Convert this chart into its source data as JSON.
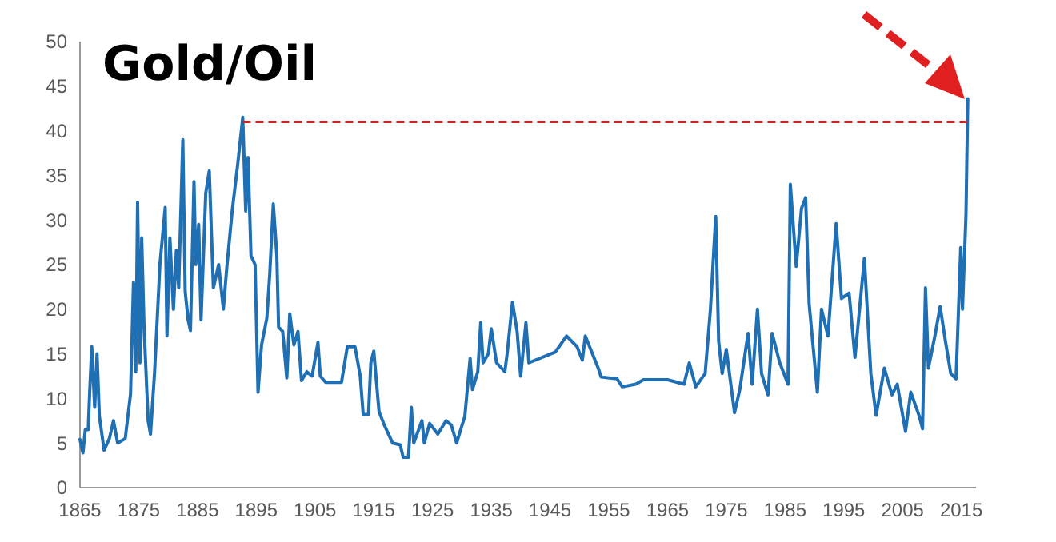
{
  "chart_data": {
    "type": "line",
    "title": "Gold/Oil",
    "xlim": [
      1865,
      2017.5
    ],
    "ylim": [
      0,
      50
    ],
    "xticks": [
      1865,
      1875,
      1885,
      1895,
      1905,
      1915,
      1925,
      1935,
      1945,
      1955,
      1965,
      1975,
      1985,
      1995,
      2005,
      2015
    ],
    "yticks": [
      0,
      5,
      10,
      15,
      20,
      25,
      30,
      35,
      40,
      45,
      50
    ],
    "grid": false,
    "marker": "none",
    "series": [
      {
        "color": "#1f6fb5",
        "x": [
          1865,
          1865.5,
          1865.9,
          1866.4,
          1866.6,
          1867,
          1867.5,
          1867.9,
          1868.3,
          1869.1,
          1870,
          1870.7,
          1871.4,
          1872.7,
          1873.6,
          1874.1,
          1874.5,
          1874.8,
          1875.2,
          1875.5,
          1875.9,
          1876.6,
          1877,
          1877.7,
          1878.6,
          1879.5,
          1879.8,
          1880.3,
          1880.9,
          1881.4,
          1881.8,
          1882.5,
          1882.9,
          1883.4,
          1883.8,
          1884.4,
          1884.7,
          1885.2,
          1885.6,
          1886.4,
          1887,
          1887.7,
          1888.6,
          1889.4,
          1890,
          1890.9,
          1891.8,
          1892.7,
          1893.2,
          1893.6,
          1894.1,
          1894.8,
          1895.3,
          1895.9,
          1896.8,
          1897.3,
          1897.9,
          1898.5,
          1898.8,
          1899.5,
          1900.2,
          1900.7,
          1901.4,
          1902.1,
          1902.7,
          1903.6,
          1904.5,
          1905.5,
          1905.9,
          1906.8,
          1909.5,
          1910.5,
          1911.8,
          1912.7,
          1913.2,
          1914.1,
          1914.5,
          1915,
          1915.9,
          1916.8,
          1918.2,
          1919.5,
          1920,
          1920.9,
          1921.4,
          1921.8,
          1923.2,
          1923.6,
          1924.5,
          1925.9,
          1927.3,
          1928.2,
          1929.1,
          1930.5,
          1931.4,
          1931.8,
          1932.7,
          1933.2,
          1933.6,
          1934.5,
          1935,
          1935.9,
          1937.3,
          1937.7,
          1938.6,
          1939.4,
          1940,
          1940.9,
          1941.4,
          1945.9,
          1947.8,
          1949.6,
          1950.5,
          1951,
          1953.2,
          1953.7,
          1956.4,
          1957.3,
          1959.6,
          1960.9,
          1965,
          1967.8,
          1968.7,
          1969.8,
          1971.4,
          1972.3,
          1973.2,
          1973.7,
          1974.3,
          1975,
          1976.4,
          1977.3,
          1978.7,
          1979.4,
          1980.3,
          1981,
          1982.1,
          1982.8,
          1984.1,
          1985.5,
          1985.9,
          1986.9,
          1987.8,
          1988.5,
          1989.1,
          1990.5,
          1991.2,
          1992.3,
          1993.7,
          1994.6,
          1995.9,
          1996.9,
          1998.5,
          1999.6,
          2000.5,
          2001.9,
          2003.2,
          2004.1,
          2005.5,
          2006.4,
          2007.8,
          2008.4,
          2008.9,
          2009.4,
          2010.5,
          2011.4,
          2012.3,
          2013.2,
          2014.1,
          2014.9,
          2015.2,
          2015.8,
          2016.1
        ],
        "values": [
          5.4,
          3.9,
          6.5,
          6.5,
          10,
          15.8,
          9,
          15,
          8,
          4.2,
          5.5,
          7.5,
          5,
          5.5,
          10.5,
          23,
          13,
          32,
          14,
          28,
          18,
          7.5,
          6,
          13,
          25,
          31.4,
          17,
          28,
          20,
          26.6,
          22.4,
          39,
          22,
          18.8,
          17.6,
          34.3,
          25,
          29.5,
          18.8,
          33,
          35.5,
          22.4,
          25,
          20,
          24.8,
          31,
          36,
          41.5,
          31,
          37,
          26,
          25,
          10.7,
          16,
          19,
          24,
          31.8,
          26,
          18,
          17.5,
          12.3,
          19.5,
          16,
          17.5,
          12,
          13,
          12.5,
          16.3,
          12.5,
          11.8,
          11.8,
          15.8,
          15.8,
          12.5,
          8.2,
          8.2,
          14,
          15.3,
          8.5,
          7,
          5,
          4.8,
          3.4,
          3.4,
          9,
          5,
          7.5,
          5,
          7.2,
          6,
          7.5,
          7,
          5,
          8,
          14.5,
          11,
          13,
          18.5,
          14,
          15,
          17.8,
          14,
          13,
          15,
          20.8,
          17.5,
          12.5,
          18.5,
          14,
          15.2,
          17,
          15.8,
          14.3,
          17,
          13.4,
          12.4,
          12.2,
          11.3,
          11.6,
          12.1,
          12.1,
          11.6,
          14,
          11.3,
          12.8,
          20,
          30.4,
          16.4,
          12.8,
          15.5,
          8.4,
          11,
          17.3,
          11.6,
          20,
          12.8,
          10.4,
          17.3,
          14,
          11.6,
          34,
          24.8,
          31.3,
          32.5,
          20.6,
          10.7,
          20,
          17,
          29.6,
          21.2,
          21.8,
          14.6,
          25.7,
          12.8,
          8.1,
          13.4,
          10.4,
          11.6,
          6.3,
          10.7,
          8.1,
          6.6,
          22.4,
          13.4,
          17,
          20.3,
          16.4,
          12.8,
          12.2,
          26.9,
          20,
          30.7,
          43.6
        ]
      }
    ],
    "ref_lines": [
      {
        "axis": "y",
        "value": 41,
        "color": "#d62020",
        "line_style": "dashed"
      }
    ]
  }
}
